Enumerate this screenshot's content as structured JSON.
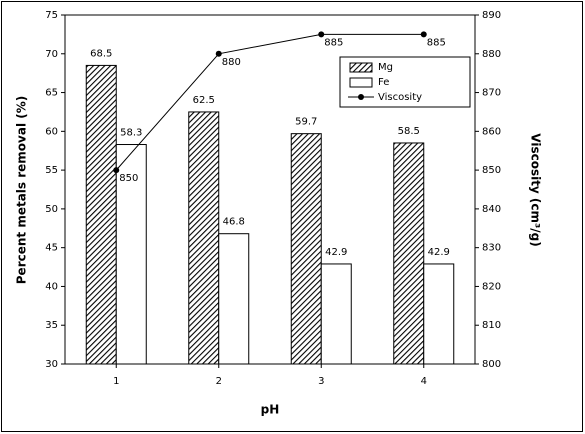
{
  "chart_data": {
    "type": "bar",
    "x_label": "pH",
    "y_label": "Percent metals removal (%)",
    "y2_label": "Viscosity (cm³/g)",
    "categories": [
      "1",
      "2",
      "3",
      "4"
    ],
    "series": [
      {
        "name": "Mg",
        "type": "bar",
        "color": "#000000",
        "pattern": "hatch",
        "values": [
          68.5,
          62.5,
          59.7,
          58.5
        ]
      },
      {
        "name": "Fe",
        "type": "bar",
        "color": "#ffffff",
        "values": [
          58.3,
          46.8,
          42.9,
          42.9
        ]
      },
      {
        "name": "Viscosity",
        "type": "line",
        "axis": "y2",
        "color": "#000000",
        "values": [
          850,
          880,
          885,
          885
        ]
      }
    ],
    "ylim": [
      30,
      75
    ],
    "yticks": [
      30,
      35,
      40,
      45,
      50,
      55,
      60,
      65,
      70,
      75
    ],
    "y2lim": [
      800,
      890
    ],
    "y2ticks": [
      800,
      810,
      820,
      830,
      840,
      850,
      860,
      870,
      880,
      890
    ],
    "grid": false,
    "legend": "upper right"
  }
}
